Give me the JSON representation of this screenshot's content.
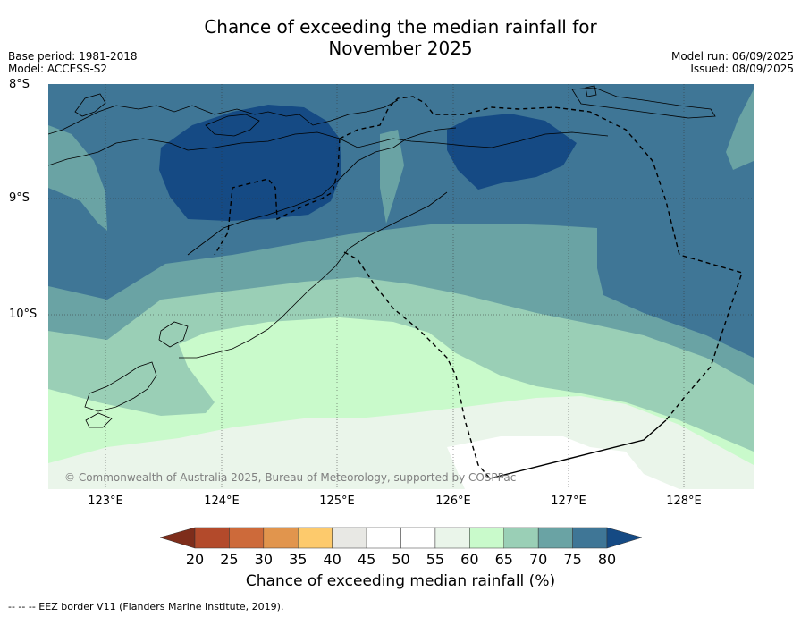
{
  "title_line1": "Chance of exceeding the median rainfall for",
  "title_line2": "November 2025",
  "base_period": "Base period: 1981-2018",
  "model": "Model: ACCESS-S2",
  "model_run": "Model run: 06/09/2025",
  "issued": "Issued: 08/09/2025",
  "lat_labels": [
    "8°S",
    "9°S",
    "10°S"
  ],
  "lon_labels": [
    "123°E",
    "124°E",
    "125°E",
    "126°E",
    "127°E",
    "128°E"
  ],
  "copyright": "© Commonwealth of Australia 2025, Bureau of Meteorology, supported by COSPPac",
  "colorbar": {
    "ticks": [
      "20",
      "25",
      "30",
      "35",
      "40",
      "45",
      "50",
      "55",
      "60",
      "65",
      "70",
      "75",
      "80"
    ],
    "colors": [
      "#7e2d1b",
      "#b34a2b",
      "#cd6a3a",
      "#e1954d",
      "#fdca6c",
      "#e8e8e4",
      "#ffffff",
      "#ffffff",
      "#eaf5ea",
      "#c9facb",
      "#9acfb6",
      "#6aa3a4",
      "#3f7696",
      "#154a84"
    ],
    "title": "Chance of exceeding median rainfall (%)"
  },
  "zone_colors": {
    "p75_80": "#3f7696",
    "p80_up": "#154a84",
    "p70_75": "#6aa3a4",
    "p65_70": "#9acfb6",
    "p60_65": "#c9facb",
    "p55_60": "#eaf5ea",
    "p50_55": "#ffffff"
  },
  "footnote": "--  --  -- EEZ border V11 (Flanders Marine Institute, 2019)."
}
